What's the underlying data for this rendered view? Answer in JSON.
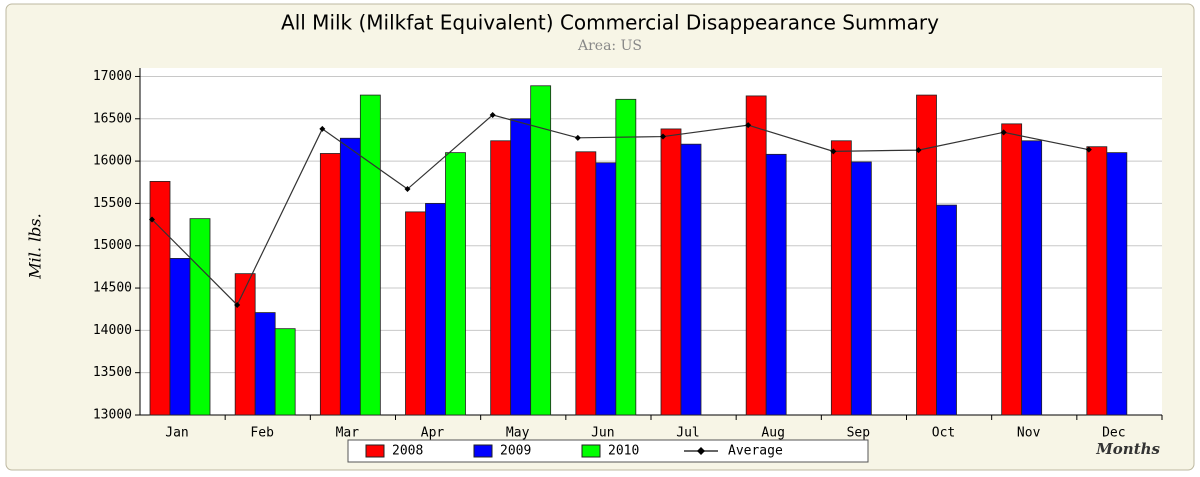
{
  "chart_data": {
    "type": "bar",
    "title": "All Milk (Milkfat Equivalent) Commercial Disappearance Summary",
    "subtitle": "Area: US",
    "y_label": "Mil. lbs.",
    "x_label": "Months",
    "categories": [
      "Jan",
      "Feb",
      "Mar",
      "Apr",
      "May",
      "Jun",
      "Jul",
      "Aug",
      "Sep",
      "Oct",
      "Nov",
      "Dec"
    ],
    "series": [
      {
        "name": "2008",
        "color": "#ff0000",
        "values": [
          15760,
          14670,
          16090,
          15400,
          16240,
          16110,
          16380,
          16770,
          16240,
          16780,
          16440,
          16170
        ]
      },
      {
        "name": "2009",
        "color": "#0000ff",
        "values": [
          14850,
          14210,
          16270,
          15500,
          16500,
          15980,
          16200,
          16080,
          15990,
          15480,
          16240,
          16100
        ]
      },
      {
        "name": "2010",
        "color": "#00ff00",
        "values": [
          15320,
          14020,
          16780,
          16100,
          16890,
          16730,
          null,
          null,
          null,
          null,
          null,
          null
        ]
      },
      {
        "name": "Average",
        "type": "line",
        "color": "#333333",
        "values": [
          15310,
          14300,
          16380,
          15670,
          16545,
          16275,
          16290,
          16425,
          16115,
          16130,
          16340,
          16135
        ]
      }
    ],
    "ylim": [
      13000,
      17100
    ],
    "yticks": [
      13000,
      13500,
      14000,
      14500,
      15000,
      15500,
      16000,
      16500,
      17000
    ],
    "grid": true,
    "legend": "bottom"
  }
}
